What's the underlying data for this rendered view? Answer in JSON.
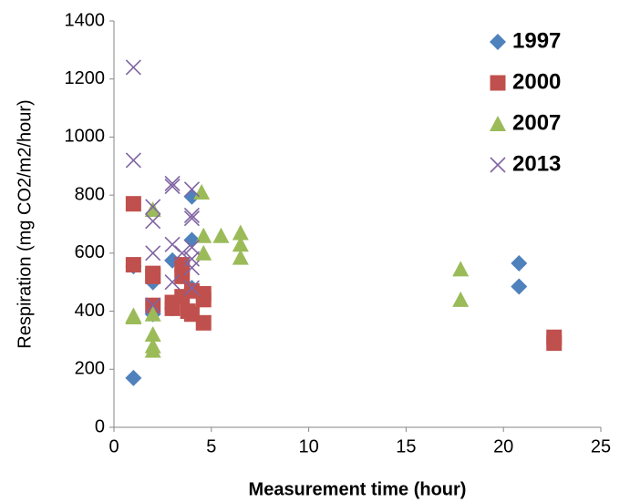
{
  "chart_data": {
    "type": "scatter",
    "xlabel": "Measurement time (hour)",
    "ylabel": "Respiration (mg CO2/m2/hour)",
    "xlim": [
      0,
      25
    ],
    "xticks": [
      0,
      5,
      10,
      15,
      20,
      25
    ],
    "ylim": [
      0,
      1400
    ],
    "yticks": [
      0,
      200,
      400,
      600,
      800,
      1000,
      1200,
      1400
    ],
    "grid": false,
    "legend": "top-right",
    "series": [
      {
        "name": "1997",
        "color": "#4f81bd",
        "marker": "diamond",
        "x": [
          1,
          1,
          2,
          2,
          3,
          3,
          4,
          4,
          4,
          20.8,
          20.8
        ],
        "values": [
          170,
          555,
          500,
          390,
          575,
          410,
          645,
          795,
          480,
          565,
          485
        ]
      },
      {
        "name": "2000",
        "color": "#c0504d",
        "marker": "square",
        "x": [
          1,
          1,
          2,
          2,
          2,
          3,
          3,
          3.5,
          3.5,
          3.5,
          3.8,
          4,
          4.6,
          4.6,
          4.6,
          4,
          22.6,
          22.6
        ],
        "values": [
          770,
          560,
          530,
          520,
          420,
          430,
          410,
          560,
          520,
          450,
          400,
          470,
          460,
          440,
          360,
          390,
          310,
          290
        ]
      },
      {
        "name": "2007",
        "color": "#9bbb59",
        "marker": "triangle",
        "x": [
          1,
          1,
          2,
          2,
          2,
          2,
          2,
          4.5,
          4.6,
          4.6,
          5.5,
          6.5,
          6.5,
          6.5,
          17.8,
          17.8
        ],
        "values": [
          385,
          380,
          750,
          390,
          320,
          280,
          265,
          810,
          660,
          600,
          660,
          670,
          630,
          585,
          545,
          440
        ]
      },
      {
        "name": "2013",
        "color": "#8064a2",
        "marker": "cross",
        "x": [
          1,
          1,
          2,
          2,
          2,
          2,
          3,
          3,
          3,
          3,
          4,
          4,
          4,
          4,
          4,
          4,
          4,
          3.5
        ],
        "values": [
          1240,
          920,
          760,
          710,
          600,
          420,
          840,
          830,
          630,
          500,
          820,
          730,
          720,
          620,
          580,
          550,
          480,
          600
        ]
      }
    ]
  }
}
